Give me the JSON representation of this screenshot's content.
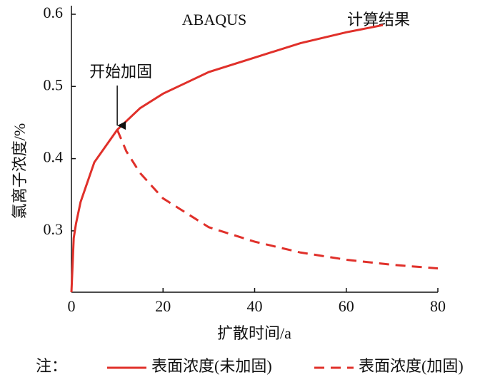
{
  "chart_data": {
    "type": "line",
    "annotations": [
      {
        "text": "开始加固",
        "x": 10,
        "y": 0.44
      }
    ],
    "labels": [
      "ABAQUS",
      "计算结果"
    ],
    "x_label": "扩散时间/a",
    "y_label": "氯离子浓度/%",
    "legend_title": "注：",
    "xlim": [
      0,
      80
    ],
    "xticks": [
      0,
      20,
      40,
      60,
      80
    ],
    "ylim": [
      0.215,
      0.6
    ],
    "yticks": [
      0.3,
      0.4,
      0.5,
      0.6
    ],
    "series": [
      {
        "name": "表面浓度(未加固)",
        "color": "#e0302a",
        "dashed": false,
        "x": [
          0,
          0.5,
          1,
          2,
          5,
          10,
          15,
          20,
          30,
          40,
          50,
          60,
          68
        ],
        "values": [
          0.215,
          0.29,
          0.31,
          0.34,
          0.395,
          0.44,
          0.47,
          0.49,
          0.52,
          0.54,
          0.56,
          0.575,
          0.585
        ]
      },
      {
        "name": "表面浓度(加固)",
        "color": "#e0302a",
        "dashed": true,
        "x": [
          10,
          12,
          15,
          20,
          30,
          40,
          50,
          60,
          70,
          80
        ],
        "values": [
          0.44,
          0.41,
          0.38,
          0.345,
          0.305,
          0.285,
          0.27,
          0.26,
          0.253,
          0.248
        ]
      }
    ]
  }
}
